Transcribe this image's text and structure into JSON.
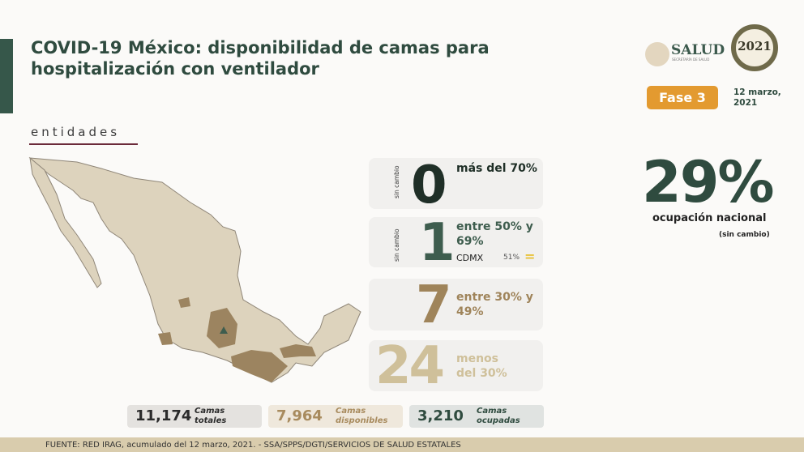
{
  "header": {
    "title": "COVID-19 México: disponibilidad de camas para hospitalización con ventilador",
    "section_label": "entidades"
  },
  "logos": {
    "salud": "SALUD",
    "salud_sub": "SECRETARÍA DE SALUD",
    "year_logo": "México 2021 Año de la Independencia"
  },
  "phase": {
    "label": "Fase 3",
    "color": "#e39a30"
  },
  "date": "12 marzo, 2021",
  "national": {
    "value": "29%",
    "label": "ocupación nacional",
    "change": "(sin cambio)"
  },
  "categories": [
    {
      "count": "0",
      "label": "más del 70%",
      "change": "sin cambio",
      "color": "#1f2f27"
    },
    {
      "count": "1",
      "label": "entre 50% y 69%",
      "change": "sin cambio",
      "color": "#3e5d4e",
      "state": "CDMX",
      "state_value": "51%",
      "state_trend": "="
    },
    {
      "count": "7",
      "label": "entre 30% y 49%",
      "color": "#9f845a"
    },
    {
      "count": "24",
      "label": "menos del 30%",
      "color": "#cfc09a"
    }
  ],
  "totals": [
    {
      "value": "11,174",
      "label": "Camas totales",
      "color": "#2b2b2b",
      "bg": "#e4e2df"
    },
    {
      "value": "7,964",
      "label": "Camas disponibles",
      "color": "#a88b5e",
      "bg": "#efe8dc"
    },
    {
      "value": "3,210",
      "label": "Camas ocupadas",
      "color": "#2f4b3f",
      "bg": "#e0e3e1"
    }
  ],
  "footer": "FUENTE: RED IRAG, acumulado del 12 marzo, 2021. -  SSA/SPPS/DGTI/SERVICIOS DE SALUD ESTATALES"
}
